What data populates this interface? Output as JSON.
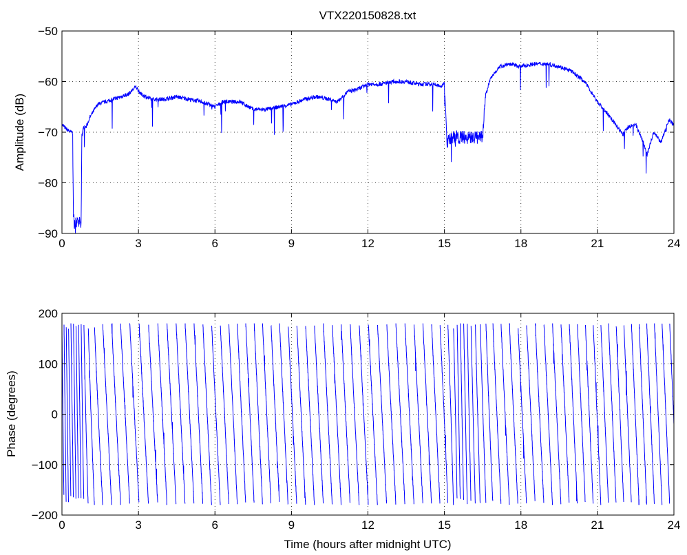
{
  "chart_data": [
    {
      "type": "line",
      "title": "VTX220150828.txt",
      "xlabel": "",
      "ylabel": "Amplitude (dB)",
      "xlim": [
        0,
        24
      ],
      "ylim": [
        -90,
        -50
      ],
      "xticks": [
        "0",
        "3",
        "6",
        "9",
        "12",
        "15",
        "18",
        "21",
        "24"
      ],
      "yticks": [
        "−50",
        "−60",
        "−70",
        "−80",
        "−90"
      ],
      "grid": true,
      "line_color": "#0000ff",
      "series": [
        {
          "x": [
            0,
            0.2,
            0.35,
            0.42,
            0.45,
            0.5,
            0.6,
            0.75,
            0.78,
            0.85,
            0.95,
            1.1,
            1.4,
            1.7,
            2.0,
            2.3,
            2.6,
            2.9,
            3.1,
            3.5,
            4.0,
            4.5,
            5.0,
            5.5,
            6.0,
            6.3,
            6.6,
            7.0,
            7.5,
            8.0,
            8.5,
            9.0,
            9.5,
            10.0,
            10.5,
            10.8,
            11.2,
            11.6,
            12.0,
            12.5,
            13.0,
            13.5,
            14.0,
            14.5,
            14.9,
            15.0,
            15.1,
            15.3,
            15.5,
            16.0,
            16.5,
            16.6,
            16.8,
            17.0,
            17.2,
            17.5,
            18.0,
            18.5,
            19.0,
            19.5,
            20.0,
            20.5,
            21.0,
            21.5,
            22.0,
            22.2,
            22.5,
            22.8,
            22.95,
            23.2,
            23.5,
            23.8,
            24.0
          ],
          "y": [
            -68.5,
            -69.5,
            -70,
            -70,
            -87,
            -88,
            -88,
            -88,
            -71,
            -69,
            -69,
            -67,
            -64.5,
            -64,
            -63.5,
            -63,
            -62.5,
            -61,
            -62.5,
            -63.5,
            -63.5,
            -63,
            -63.5,
            -64,
            -65,
            -64,
            -64,
            -64,
            -65.5,
            -65.5,
            -65,
            -64.5,
            -63.5,
            -63,
            -63.5,
            -64,
            -62,
            -61.5,
            -60.5,
            -60.5,
            -60,
            -60,
            -60.5,
            -60.5,
            -61,
            -60,
            -72,
            -71,
            -71,
            -71,
            -71,
            -63,
            -59.5,
            -58,
            -57,
            -56.5,
            -57,
            -56.5,
            -56.5,
            -57,
            -58,
            -60,
            -64,
            -67,
            -70.5,
            -69,
            -68.5,
            -72,
            -74.5,
            -70,
            -72,
            -67.5,
            -68.5
          ]
        }
      ]
    },
    {
      "type": "line",
      "title": "",
      "xlabel": "Time (hours after midnight UTC)",
      "ylabel": "Phase (degrees)",
      "xlim": [
        0,
        24
      ],
      "ylim": [
        -200,
        200
      ],
      "xticks": [
        "0",
        "3",
        "6",
        "9",
        "12",
        "15",
        "18",
        "21",
        "24"
      ],
      "yticks": [
        "200",
        "100",
        "0",
        "−100",
        "−200"
      ],
      "grid": true,
      "line_color": "#0000ff",
      "wrap_range": [
        -180,
        180
      ],
      "series": [
        {
          "x": [
            0,
            0.2,
            0.4,
            0.6,
            0.8,
            1.0,
            1.5,
            2.0,
            2.5,
            3.0,
            4.0,
            5.0,
            6.0,
            7.0,
            8.0,
            9.0,
            10.0,
            11.0,
            12.0,
            13.0,
            14.0,
            15.0,
            15.5,
            16.0,
            16.5,
            17.0,
            18.0,
            19.0,
            20.0,
            21.0,
            22.0,
            23.0,
            24.0
          ],
          "wrap_period_hours": [
            0.08,
            0.09,
            0.1,
            0.1,
            0.1,
            0.2,
            0.35,
            0.35,
            0.36,
            0.37,
            0.36,
            0.35,
            0.34,
            0.33,
            0.33,
            0.34,
            0.35,
            0.35,
            0.36,
            0.36,
            0.35,
            0.32,
            0.12,
            0.15,
            0.22,
            0.32,
            0.34,
            0.34,
            0.32,
            0.3,
            0.3,
            0.3,
            0.3
          ]
        }
      ]
    }
  ]
}
